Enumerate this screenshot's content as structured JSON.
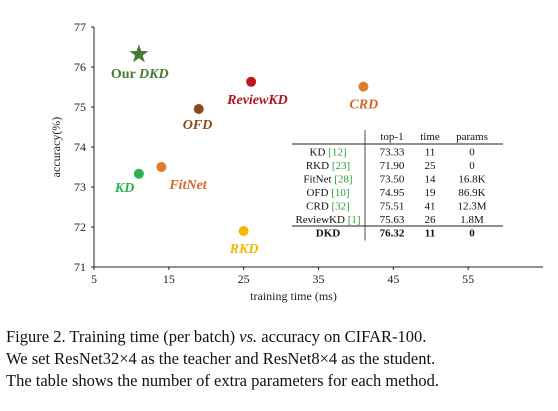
{
  "chart_data": {
    "type": "scatter",
    "xlabel": "training time (ms)",
    "ylabel": "accuracy(%)",
    "xlim": [
      5,
      65
    ],
    "ylim": [
      71,
      77
    ],
    "xticks": [
      "5",
      "15",
      "25",
      "35",
      "45",
      "55"
    ],
    "yticks": [
      "71",
      "72",
      "73",
      "74",
      "75",
      "76",
      "77"
    ],
    "points": [
      {
        "label": "KD",
        "x": 11,
        "y": 73.33,
        "color": "#2bb24c",
        "marker": "circle",
        "label_color": "#2bb24c"
      },
      {
        "label": "FitNet",
        "x": 14,
        "y": 73.5,
        "color": "#e07b2a",
        "marker": "circle",
        "label_color": "#d9632a"
      },
      {
        "label": "OFD",
        "x": 19,
        "y": 74.95,
        "color": "#8b4a1c",
        "marker": "circle",
        "label_color": "#8b4a1c"
      },
      {
        "label": "ReviewKD",
        "x": 26,
        "y": 75.63,
        "color": "#c0161b",
        "marker": "circle",
        "label_color": "#b0151a"
      },
      {
        "label": "CRD",
        "x": 41,
        "y": 75.51,
        "color": "#e07b2a",
        "marker": "circle",
        "label_color": "#d9632a"
      },
      {
        "label": "RKD",
        "x": 25,
        "y": 71.9,
        "color": "#f5b800",
        "marker": "circle",
        "label_color": "#f5b800"
      },
      {
        "label": "Our DKD",
        "x": 11,
        "y": 76.32,
        "color": "#4a7a32",
        "marker": "star",
        "label_color": "#4a7a32"
      }
    ],
    "table": {
      "headers": [
        "",
        "top-1",
        "time",
        "params"
      ],
      "rows": [
        {
          "method": "KD",
          "ref": "[12]",
          "top1": "73.33",
          "time": "11",
          "params": "0"
        },
        {
          "method": "RKD",
          "ref": "[23]",
          "top1": "71.90",
          "time": "25",
          "params": "0"
        },
        {
          "method": "FitNet",
          "ref": "[28]",
          "top1": "73.50",
          "time": "14",
          "params": "16.8K"
        },
        {
          "method": "OFD",
          "ref": "[10]",
          "top1": "74.95",
          "time": "19",
          "params": "86.9K"
        },
        {
          "method": "CRD",
          "ref": "[32]",
          "top1": "75.51",
          "time": "41",
          "params": "12.3M"
        },
        {
          "method": "ReviewKD",
          "ref": "[1]",
          "top1": "75.63",
          "time": "26",
          "params": "1.8M"
        },
        {
          "method": "DKD",
          "ref": "",
          "top1": "76.32",
          "time": "11",
          "params": "0",
          "bold": true
        }
      ]
    }
  },
  "caption": {
    "line1": "Figure 2. Training time (per batch) vs. accuracy on CIFAR-100.",
    "line2": "We set ResNet32×4 as the teacher and ResNet8×4 as the student.",
    "line3": "The table shows the number of extra parameters for each method."
  }
}
